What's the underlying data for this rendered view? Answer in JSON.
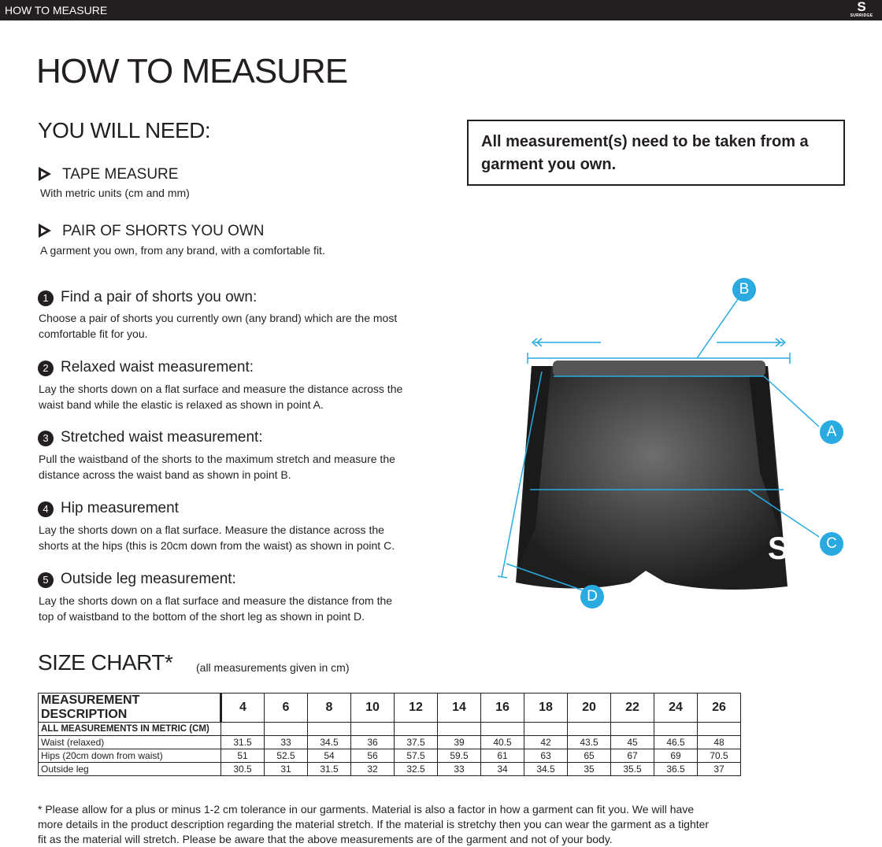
{
  "topbar": {
    "title": "HOW TO MEASURE",
    "brand": "SURRIDGE"
  },
  "page_title": "HOW TO MEASURE",
  "you_will_need": {
    "heading": "YOU WILL NEED:",
    "items": [
      {
        "title": "TAPE MEASURE",
        "desc": "With metric units (cm and mm)"
      },
      {
        "title": "PAIR OF SHORTS YOU OWN",
        "desc": "A garment you own, from any brand, with a comfortable fit."
      }
    ]
  },
  "notice": "All measurement(s) need to be taken from a garment you own.",
  "steps": [
    {
      "num": "1",
      "title": "Find a pair of shorts you own:",
      "desc": "Choose a pair of shorts you currently own (any brand) which are the most comfortable fit for you."
    },
    {
      "num": "2",
      "title": "Relaxed waist measurement:",
      "desc": "Lay the shorts down on a flat surface and measure the distance across the waist band while the elastic is relaxed as shown in point A."
    },
    {
      "num": "3",
      "title": "Stretched waist measurement:",
      "desc": "Pull the waistband of the shorts to the maximum stretch and measure the distance across the waist band as shown in point B."
    },
    {
      "num": "4",
      "title": "Hip measurement",
      "desc": "Lay the shorts down on a flat surface. Measure the distance across the shorts at the hips (this is 20cm down from the waist)  as shown in point C."
    },
    {
      "num": "5",
      "title": "Outside leg measurement:",
      "desc": "Lay the shorts down on a flat surface and measure the distance from the top of waistband to the bottom of the short leg as shown in point D."
    }
  ],
  "diagram": {
    "labels": {
      "a": "A",
      "b": "B",
      "c": "C",
      "d": "D"
    },
    "accent": "#29abe2"
  },
  "size_chart": {
    "heading": "SIZE CHART*",
    "note": "(all measurements given in cm)",
    "header": "MEASUREMENT DESCRIPTION",
    "sizes": [
      "4",
      "6",
      "8",
      "10",
      "12",
      "14",
      "16",
      "18",
      "20",
      "22",
      "24",
      "26"
    ],
    "subheader": "ALL MEASUREMENTS IN METRIC (CM)",
    "rows": [
      {
        "label": "Waist (relaxed)",
        "values": [
          "31.5",
          "33",
          "34.5",
          "36",
          "37.5",
          "39",
          "40.5",
          "42",
          "43.5",
          "45",
          "46.5",
          "48"
        ]
      },
      {
        "label": "Hips (20cm down from waist)",
        "values": [
          "51",
          "52.5",
          "54",
          "56",
          "57.5",
          "59.5",
          "61",
          "63",
          "65",
          "67",
          "69",
          "70.5"
        ]
      },
      {
        "label": "Outside leg",
        "values": [
          "30.5",
          "31",
          "31.5",
          "32",
          "32.5",
          "33",
          "34",
          "34.5",
          "35",
          "35.5",
          "36.5",
          "37"
        ]
      }
    ]
  },
  "footnote": "* Please allow for a plus or minus 1-2 cm tolerance in our garments. Material is also a factor in how a garment can fit you. We will have more details in the product description regarding the material stretch.  If the material is stretchy then you can wear the garment as a tighter fit as the material will stretch.  Please be aware that the above measurements are of the garment and not of your body."
}
